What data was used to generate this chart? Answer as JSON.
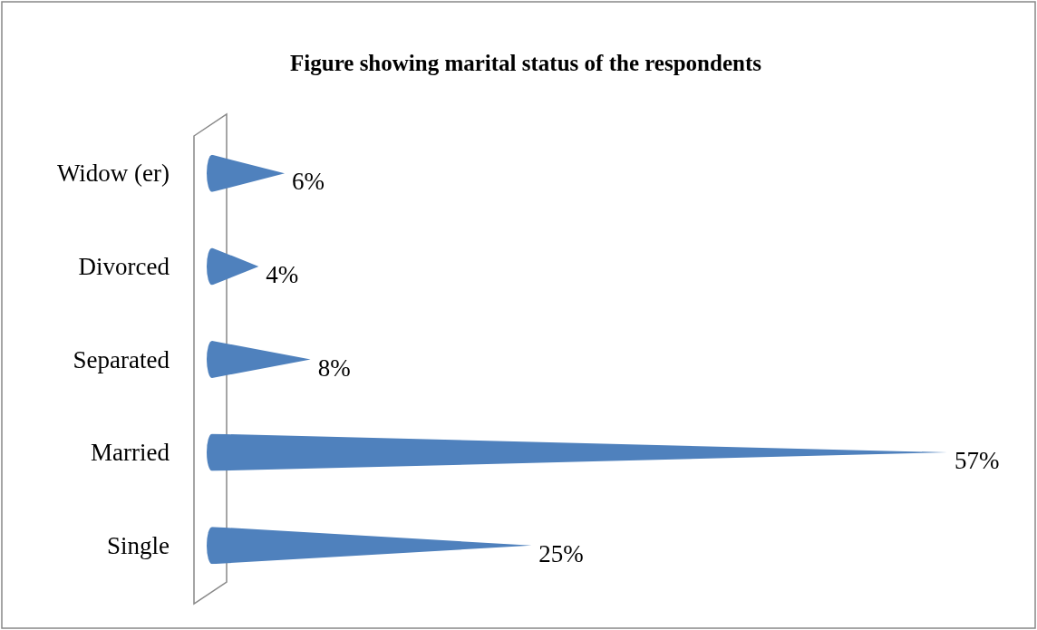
{
  "chart_data": {
    "type": "bar",
    "orientation": "horizontal",
    "title": "Figure showing marital status of the respondents",
    "categories": [
      "Widow (er)",
      "Divorced",
      "Separated",
      "Married",
      "Single"
    ],
    "values": [
      6,
      4,
      8,
      57,
      25
    ],
    "value_labels": [
      "6%",
      "4%",
      "8%",
      "57%",
      "25%"
    ],
    "color": "#4f81bd"
  }
}
